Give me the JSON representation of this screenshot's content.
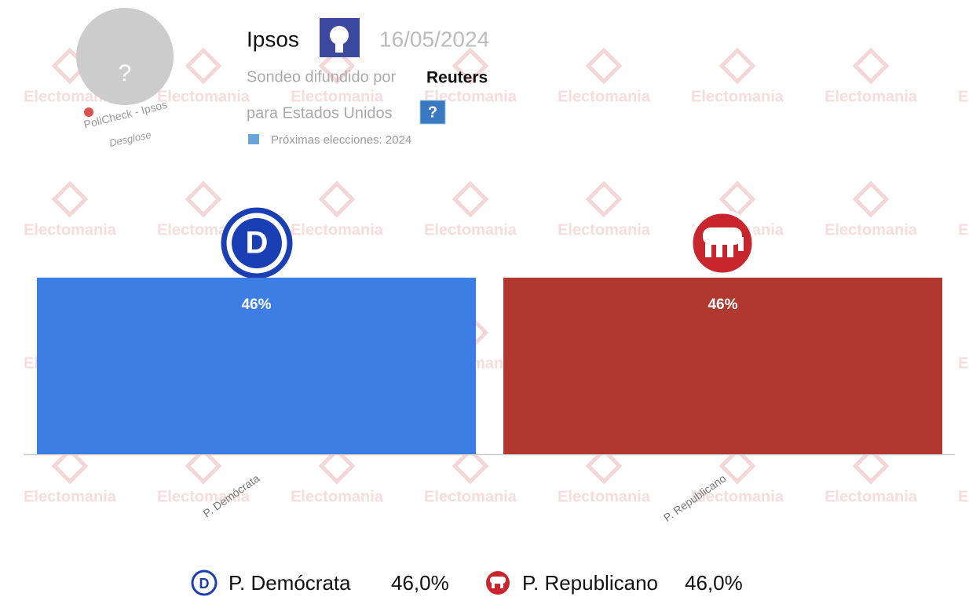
{
  "header": {
    "pollster": "Ipsos",
    "date": "16/05/2024",
    "sponsor_prefix": "Sondeo difundido por",
    "sponsor": "Reuters",
    "region": "para Estados Unidos",
    "next_election": "Próximas elecciones: 2024",
    "avatar": "?",
    "badge": "PoliCheck - Ipsos",
    "breakdown": "Desglose",
    "watermark": "Electomania"
  },
  "chart_data": {
    "type": "bar",
    "categories": [
      "P. Demócrata",
      "P. Republicano"
    ],
    "values": [
      46,
      46
    ],
    "value_labels": [
      "46%",
      "46%"
    ],
    "legend_labels": [
      "46,0%",
      "46,0%"
    ],
    "colors": [
      "#3d7ee4",
      "#b0382f"
    ],
    "ylim": [
      0,
      46
    ]
  }
}
